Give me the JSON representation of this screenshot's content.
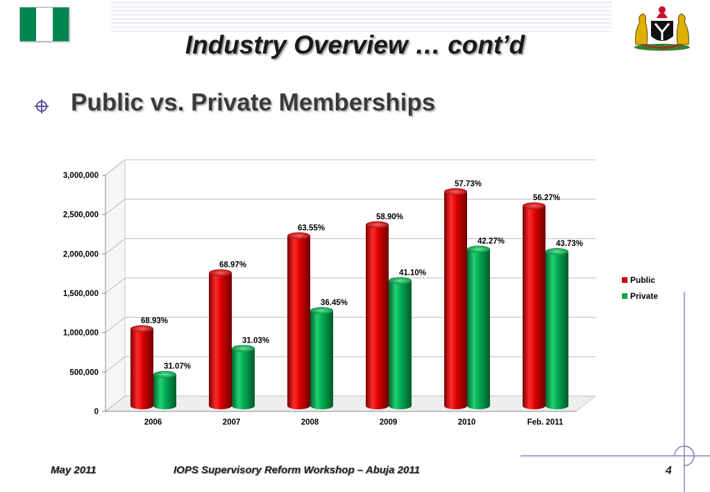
{
  "header": {
    "title": "Industry Overview … cont’d",
    "subtitle": "Public vs. Private Memberships"
  },
  "footer": {
    "date": "May 2011",
    "event": "IOPS Supervisory Reform Workshop – Abuja 2011",
    "page": "4"
  },
  "colors": {
    "flag_green": "#008751",
    "public": "#cc0000",
    "private": "#00a651",
    "bullet": "#5b4ba0"
  },
  "chart_data": {
    "type": "bar",
    "categories": [
      "2006",
      "2007",
      "2008",
      "2009",
      "2010",
      "Feb. 2011"
    ],
    "series": [
      {
        "name": "Public",
        "values": [
          1050000,
          1760000,
          2230000,
          2370000,
          2790000,
          2610000
        ],
        "labels": [
          "68.93%",
          "68.97%",
          "63.55%",
          "58.90%",
          "57.73%",
          "56.27%"
        ],
        "color": "#cc0000"
      },
      {
        "name": "Private",
        "values": [
          470000,
          800000,
          1280000,
          1660000,
          2060000,
          2030000
        ],
        "labels": [
          "31.07%",
          "31.03%",
          "36.45%",
          "41.10%",
          "42.27%",
          "43.73%"
        ],
        "color": "#00a651"
      }
    ],
    "yticks": [
      "0",
      "500,000",
      "1,000,000",
      "1,500,000",
      "2,000,000",
      "2,500,000",
      "3,000,000"
    ],
    "ylim": [
      0,
      3000000
    ],
    "grid": true,
    "legend": "right"
  }
}
